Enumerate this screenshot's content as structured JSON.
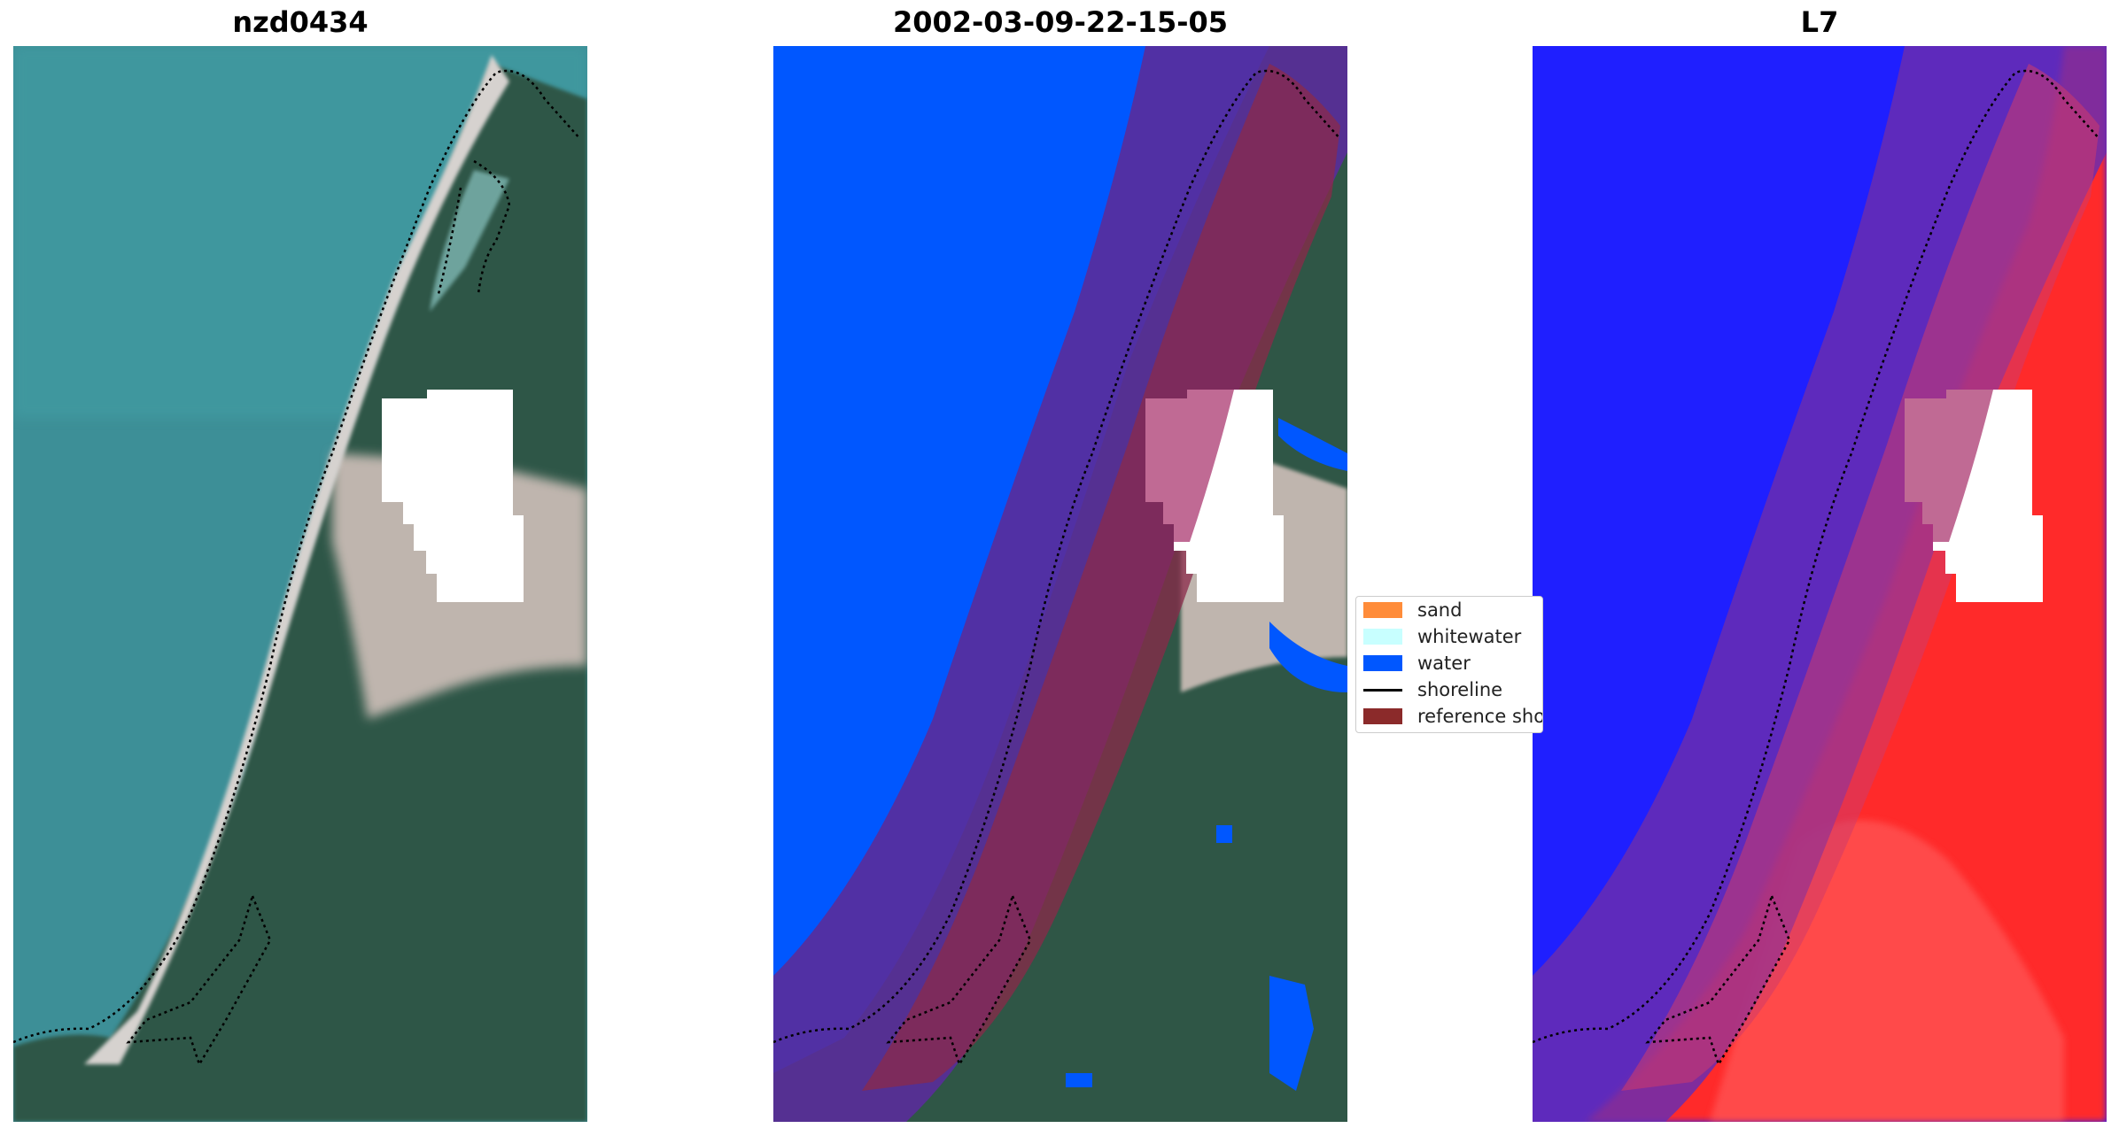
{
  "panels": [
    {
      "title": "nzd0434",
      "kind": "satellite-rgb"
    },
    {
      "title": "2002-03-09-22-15-05",
      "kind": "classification"
    },
    {
      "title": "L7",
      "kind": "water-index"
    }
  ],
  "legend": {
    "items": [
      {
        "label": "sand",
        "color": "#FF8C3A",
        "type": "patch"
      },
      {
        "label": "whitewater",
        "color": "#C8FFFF",
        "type": "patch"
      },
      {
        "label": "water",
        "color": "#0057FF",
        "type": "patch"
      },
      {
        "label": "shoreline",
        "color": "#000000",
        "type": "line"
      },
      {
        "label": "reference shoreline buffer",
        "color": "#8B2A2A",
        "type": "patch"
      }
    ]
  },
  "colors": {
    "sea": "#3C8E95",
    "land": "#34584A",
    "beach": "#C9C2BC",
    "water_class": "#0057FF",
    "buffer": "#5A2C9A",
    "mask": "#FFFFFF",
    "index_water": "#1F1FFF",
    "index_land": "#FF2A2A"
  }
}
